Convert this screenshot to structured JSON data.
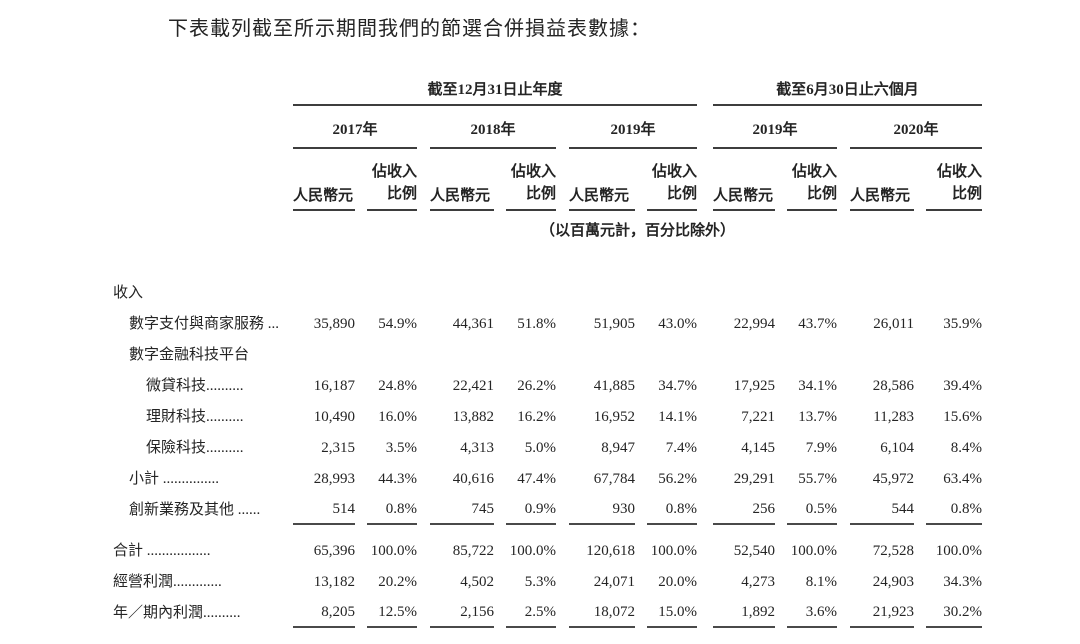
{
  "intro": "下表載列截至所示期間我們的節選合併損益表數據：",
  "table": {
    "groups": [
      {
        "label": "截至12月31日止年度",
        "years": [
          "2017年",
          "2018年",
          "2019年"
        ]
      },
      {
        "label": "截至6月30日止六個月",
        "years": [
          "2019年",
          "2020年"
        ]
      }
    ],
    "col_headers": {
      "amount": "人民幣元",
      "pct_line1": "佔收入",
      "pct_line2": "比例"
    },
    "note": "（以百萬元計，百分比除外）",
    "rows": [
      {
        "label": "收入",
        "indent": 0,
        "values": []
      },
      {
        "label": "數字支付與商家服務 ...",
        "indent": 1,
        "values": [
          "35,890",
          "54.9%",
          "44,361",
          "51.8%",
          "51,905",
          "43.0%",
          "22,994",
          "43.7%",
          "26,011",
          "35.9%"
        ]
      },
      {
        "label": "數字金融科技平台",
        "indent": 1,
        "values": []
      },
      {
        "label": "微貸科技..........",
        "indent": 2,
        "values": [
          "16,187",
          "24.8%",
          "22,421",
          "26.2%",
          "41,885",
          "34.7%",
          "17,925",
          "34.1%",
          "28,586",
          "39.4%"
        ]
      },
      {
        "label": "理財科技..........",
        "indent": 2,
        "values": [
          "10,490",
          "16.0%",
          "13,882",
          "16.2%",
          "16,952",
          "14.1%",
          "7,221",
          "13.7%",
          "11,283",
          "15.6%"
        ]
      },
      {
        "label": "保險科技..........",
        "indent": 2,
        "values": [
          "2,315",
          "3.5%",
          "4,313",
          "5.0%",
          "8,947",
          "7.4%",
          "4,145",
          "7.9%",
          "6,104",
          "8.4%"
        ]
      },
      {
        "label": "小計 ...............",
        "indent": 1,
        "values": [
          "28,993",
          "44.3%",
          "40,616",
          "47.4%",
          "67,784",
          "56.2%",
          "29,291",
          "55.7%",
          "45,972",
          "63.4%"
        ]
      },
      {
        "label": "創新業務及其他 ......",
        "indent": 1,
        "rule_below": true,
        "values": [
          "514",
          "0.8%",
          "745",
          "0.9%",
          "930",
          "0.8%",
          "256",
          "0.5%",
          "544",
          "0.8%"
        ]
      },
      {
        "label": "合計 .................",
        "indent": 0,
        "values": [
          "65,396",
          "100.0%",
          "85,722",
          "100.0%",
          "120,618",
          "100.0%",
          "52,540",
          "100.0%",
          "72,528",
          "100.0%"
        ]
      },
      {
        "label": "經營利潤.............",
        "indent": 0,
        "values": [
          "13,182",
          "20.2%",
          "4,502",
          "5.3%",
          "24,071",
          "20.0%",
          "4,273",
          "8.1%",
          "24,903",
          "34.3%"
        ]
      },
      {
        "label": "年／期內利潤..........",
        "indent": 0,
        "rule_below": true,
        "values": [
          "8,205",
          "12.5%",
          "2,156",
          "2.5%",
          "18,072",
          "15.0%",
          "1,892",
          "3.6%",
          "21,923",
          "30.2%"
        ]
      }
    ]
  }
}
